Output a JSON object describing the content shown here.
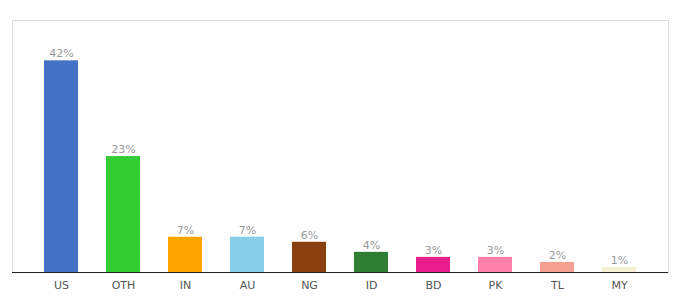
{
  "chart_data": {
    "type": "bar",
    "categories": [
      "US",
      "OTH",
      "IN",
      "AU",
      "NG",
      "ID",
      "BD",
      "PK",
      "TL",
      "MY"
    ],
    "values": [
      42,
      23,
      7,
      7,
      6,
      4,
      3,
      3,
      2,
      1
    ],
    "value_labels": [
      "42%",
      "23%",
      "7%",
      "7%",
      "6%",
      "4%",
      "3%",
      "3%",
      "2%",
      "1%"
    ],
    "colors": [
      "#4472c4",
      "#33cc33",
      "#ffa500",
      "#87ceeb",
      "#8b4010",
      "#2e7d32",
      "#e91e8c",
      "#ff80ab",
      "#f4a090",
      "#f5f0d0"
    ],
    "ylim": [
      0,
      50
    ],
    "data_labels": true,
    "tick_labels": "x"
  }
}
